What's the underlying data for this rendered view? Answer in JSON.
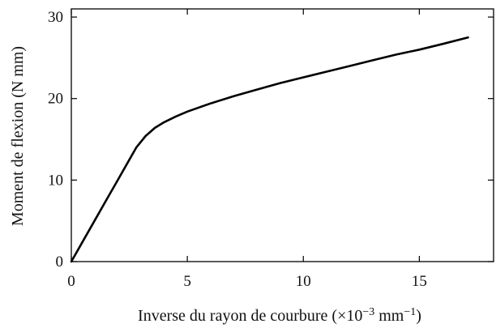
{
  "chart_data": {
    "type": "line",
    "title": "",
    "xlabel": {
      "text": "Inverse du rayon de courbure (",
      "mult": "×10",
      "exp1": "−3",
      "unit": " mm",
      "exp2": "−1",
      "close": ")"
    },
    "ylabel": "Moment de flexion (N mm)",
    "xlim": [
      0,
      18.2
    ],
    "ylim": [
      0,
      31
    ],
    "xticks": [
      0,
      5,
      10,
      15
    ],
    "xtick_labels": [
      "0",
      "5",
      "10",
      "15"
    ],
    "yticks": [
      0,
      10,
      20,
      30
    ],
    "ytick_labels": [
      "0",
      "10",
      "20",
      "30"
    ],
    "grid": false,
    "legend": "none",
    "colors": {
      "line": "#000000",
      "axes": "#000000"
    },
    "series": [
      {
        "x": [
          0,
          0.5,
          1.0,
          1.5,
          2.0,
          2.5,
          2.8,
          3.2,
          3.6,
          4.0,
          4.5,
          5.0,
          6.0,
          7.0,
          8.0,
          9.0,
          10.0,
          11.0,
          12.0,
          13.0,
          14.0,
          15.0,
          16.0,
          17.1
        ],
        "y": [
          0,
          2.5,
          5.0,
          7.5,
          10.0,
          12.5,
          14.0,
          15.4,
          16.4,
          17.1,
          17.8,
          18.4,
          19.4,
          20.3,
          21.1,
          21.9,
          22.6,
          23.3,
          24.0,
          24.7,
          25.4,
          26.0,
          26.7,
          27.5
        ]
      }
    ]
  }
}
